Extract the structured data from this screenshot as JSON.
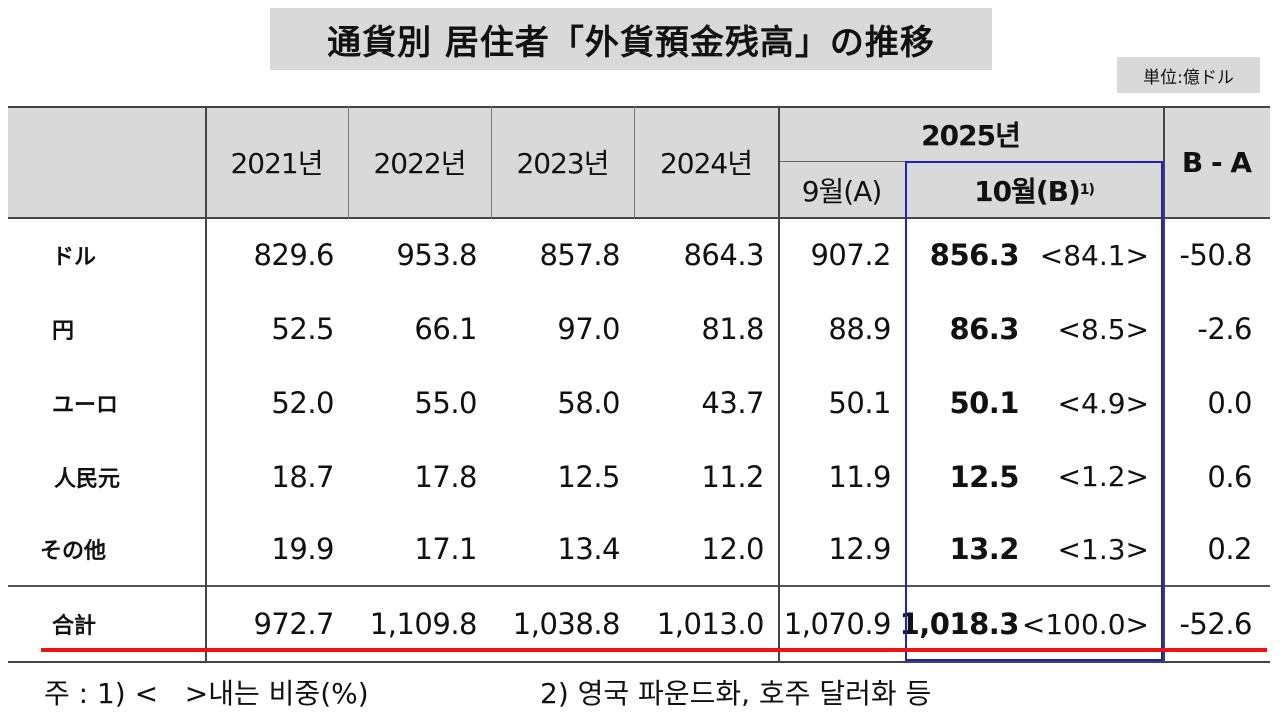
{
  "title": "通貨別 居住者「外貨預金残高」の推移",
  "unit": "単位:億ドル",
  "header": {
    "years": [
      "2021년",
      "2022년",
      "2023년",
      "2024년"
    ],
    "year2025": "2025년",
    "month_a": "9월(A)",
    "month_b": "10월(B)",
    "month_b_note": "1)",
    "diff": "B - A"
  },
  "rows": [
    {
      "label": "ドル",
      "values": [
        "829.6",
        "953.8",
        "857.8",
        "864.3",
        "907.2",
        "856.3"
      ],
      "share": "<84.1>",
      "diff": "-50.8"
    },
    {
      "label": "円",
      "values": [
        "52.5",
        "66.1",
        "97.0",
        "81.8",
        "88.9",
        "86.3"
      ],
      "share": "<8.5>",
      "diff": "-2.6"
    },
    {
      "label": "ユーロ",
      "values": [
        "52.0",
        "55.0",
        "58.0",
        "43.7",
        "50.1",
        "50.1"
      ],
      "share": "<4.9>",
      "diff": "0.0"
    },
    {
      "label": "人民元",
      "values": [
        "18.7",
        "17.8",
        "12.5",
        "11.2",
        "11.9",
        "12.5"
      ],
      "share": "<1.2>",
      "diff": "0.6"
    },
    {
      "label": "その他",
      "values": [
        "19.9",
        "17.1",
        "13.4",
        "12.0",
        "12.9",
        "13.2"
      ],
      "share": "<1.3>",
      "diff": "0.2"
    },
    {
      "label": "合計",
      "values": [
        "972.7",
        "1,109.8",
        "1,038.8",
        "1,013.0",
        "1,070.9",
        "1,018.3"
      ],
      "share": "<100.0>",
      "diff": "-52.6"
    }
  ],
  "notes": {
    "note1": "주 : 1) <   >내는 비중(%)",
    "note2": "2) 영국 파운드화, 호주 달러화 등"
  },
  "colors": {
    "header_bg": "#d9d9d9",
    "highlight_box": "#1f1fd0",
    "underline": "#e11111"
  }
}
